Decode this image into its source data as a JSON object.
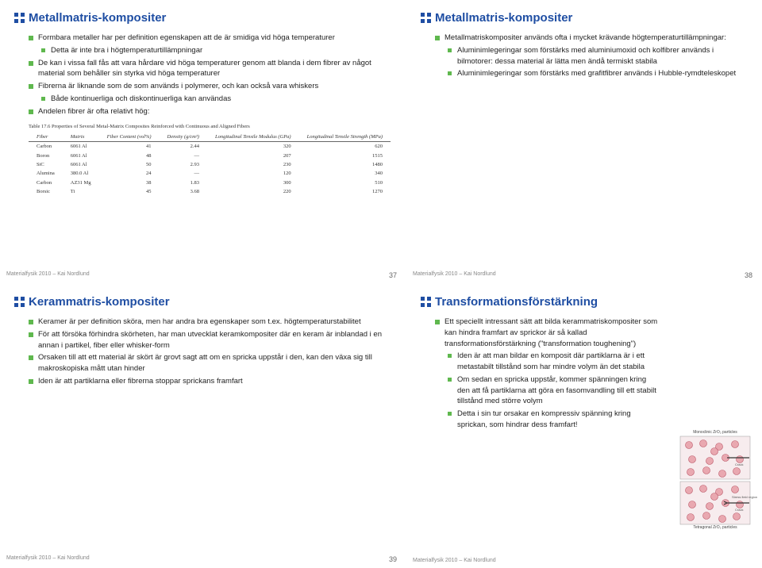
{
  "colors": {
    "title": "#1f4ea3",
    "bullet": "#5fb84e",
    "text": "#222222",
    "footer": "#888888",
    "bg": "#ffffff",
    "tableText": "#333333"
  },
  "typography": {
    "title_pt": 15,
    "body_pt": 9.5,
    "footer_pt": 7,
    "table_pt": 6.5,
    "font_family": "Arial"
  },
  "footer_text": "Materialfysik 2010 – Kai Nordlund",
  "slides": [
    {
      "title": "Metallmatris-kompositer",
      "page": "37",
      "bullets": [
        {
          "lvl": 0,
          "t": "Formbara metaller har per definition egenskapen att de är smidiga vid höga temperaturer"
        },
        {
          "lvl": 1,
          "t": "Detta är inte bra i högtemperaturtillämpningar"
        },
        {
          "lvl": 0,
          "t": "De kan i vissa fall fås att vara hårdare vid höga temperaturer genom att blanda i dem fibrer av något material som behåller sin styrka vid höga temperaturer"
        },
        {
          "lvl": 0,
          "t": "Fibrerna är liknande som de som används i polymerer, och kan också vara whiskers"
        },
        {
          "lvl": 1,
          "t": "Både kontinuerliga och diskontinuerliga kan användas"
        },
        {
          "lvl": 0,
          "t": "Andelen fibrer är ofta relativt hög:"
        }
      ],
      "table": {
        "caption": "Table 17.6  Properties of Several Metal-Matrix Composites Reinforced with Continuous and Aligned Fibers",
        "columns": [
          "Fiber",
          "Matrix",
          "Fiber Content (vol%)",
          "Density (g/cm³)",
          "Longitudinal Tensile Modulus (GPa)",
          "Longitudinal Tensile Strength (MPa)"
        ],
        "rows": [
          [
            "Carbon",
            "6061 Al",
            "41",
            "2.44",
            "320",
            "620"
          ],
          [
            "Boron",
            "6061 Al",
            "48",
            "—",
            "207",
            "1515"
          ],
          [
            "SiC",
            "6061 Al",
            "50",
            "2.93",
            "230",
            "1480"
          ],
          [
            "Alumina",
            "380.0 Al",
            "24",
            "—",
            "120",
            "340"
          ],
          [
            "Carbon",
            "AZ31 Mg",
            "38",
            "1.83",
            "300",
            "510"
          ],
          [
            "Borsic",
            "Ti",
            "45",
            "3.68",
            "220",
            "1270"
          ]
        ]
      }
    },
    {
      "title": "Metallmatris-kompositer",
      "page": "38",
      "bullets": [
        {
          "lvl": 0,
          "t": "Metallmatriskompositer används ofta i mycket krävande högtemperaturtillämpningar:"
        },
        {
          "lvl": 1,
          "t": "Aluminimlegeringar som förstärks med aluminiumoxid och kolfibrer används i bilmotorer: dessa material är lätta men ändå termiskt stabila"
        },
        {
          "lvl": 1,
          "t": "Aluminimlegeringar som förstärks med grafitfibrer används i Hubble-rymdteleskopet"
        }
      ]
    },
    {
      "title": "Kerammatris-kompositer",
      "page": "39",
      "bullets": [
        {
          "lvl": 0,
          "t": "Keramer är per definition sköra, men har andra bra egenskaper som t.ex. högtemperaturstabilitet"
        },
        {
          "lvl": 0,
          "t": "För att försöka förhindra skörheten, har man utvecklat keramkompositer där en keram är inblandad i en annan i partikel, fiber eller whisker-form"
        },
        {
          "lvl": 0,
          "t": "Orsaken till att ett material är skört är grovt sagt att om en spricka uppstår i den, kan den växa sig till makroskopiska mått utan hinder"
        },
        {
          "lvl": 0,
          "t": "Iden är att partiklarna eller fibrerna stoppar sprickans framfart"
        }
      ]
    },
    {
      "title": "Transformationsförstärkning",
      "page": "",
      "bullets": [
        {
          "lvl": 0,
          "t": "Ett speciellt intressant sätt att bilda kerammatriskompositer som kan hindra framfart av sprickor är så kallad transformationsförstärkning (\"transformation toughening\")"
        },
        {
          "lvl": 1,
          "t": "Iden är att man bildar en komposit där partiklarna är i ett metastabilt tillstånd som har mindre volym än det stabila"
        },
        {
          "lvl": 1,
          "t": "Om sedan en spricka uppstår, kommer spänningen kring den att få partiklarna att göra en fasomvandling till ett stabilt tillstånd med större volym"
        },
        {
          "lvl": 1,
          "t": "Detta i sin tur orsakar en kompressiv spänning kring sprickan, som hindrar dess framfart!"
        }
      ],
      "diagram": {
        "labels": {
          "top": "Monoclinic ZrO₂ particles",
          "stress": "Stress field region",
          "crack": "Crack",
          "bottom": "Tetragonal ZrO₂ particles"
        },
        "particle_fill": "#e9a8b0",
        "particle_stroke": "#b56",
        "matrix_fill": "#f7ecee",
        "crack_color": "#333333"
      }
    }
  ]
}
